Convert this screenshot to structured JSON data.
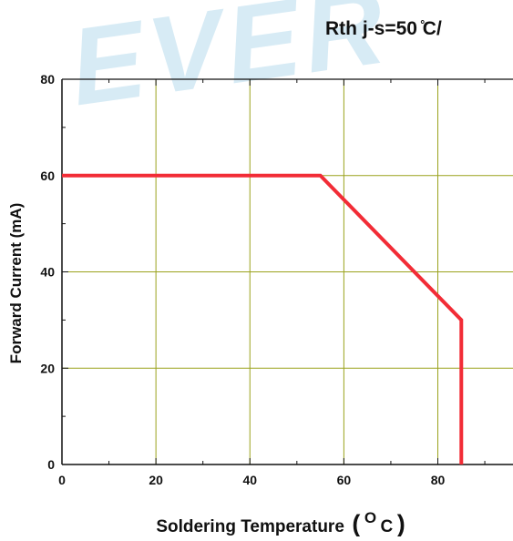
{
  "watermark": {
    "text": "EVER",
    "color": "#d7ebf5"
  },
  "chart_data": {
    "type": "line",
    "title": "Rth j-s=50 ̊C/",
    "xlabel": "Soldering Temperature",
    "xlabel_unit_open": "(",
    "xlabel_unit_sup": "O",
    "xlabel_unit_text": "C",
    "xlabel_unit_close": ")",
    "ylabel": "Forward Current (mA)",
    "xlim": [
      0,
      96
    ],
    "ylim": [
      0,
      80
    ],
    "xticks": [
      0,
      20,
      40,
      60,
      80
    ],
    "yticks": [
      0,
      20,
      40,
      60,
      80
    ],
    "minor_step": 10,
    "grid": true,
    "grid_color": "#9aa21c",
    "line_color": "#f22c36",
    "series": [
      {
        "x": [
          0,
          55,
          85,
          85
        ],
        "y": [
          60,
          60,
          30,
          0
        ]
      }
    ]
  }
}
